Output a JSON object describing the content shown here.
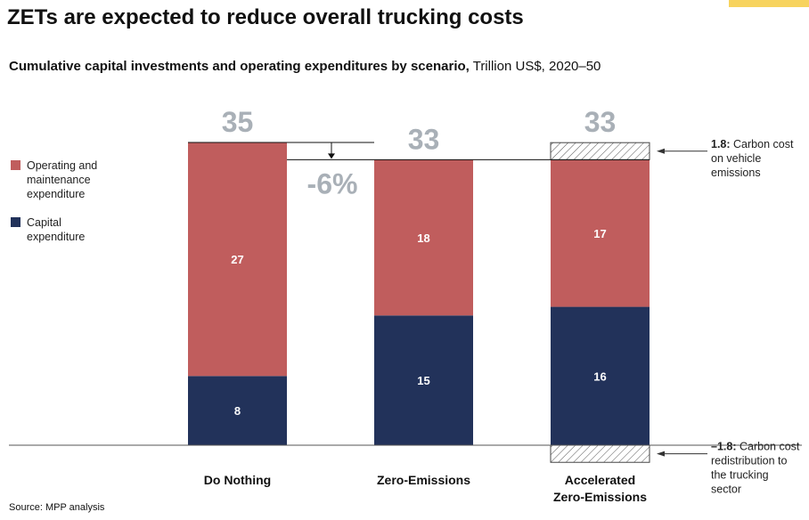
{
  "title": "ZETs are expected to reduce overall trucking costs",
  "subtitle_bold": "Cumulative capital investments and operating expenditures by scenario,",
  "subtitle_rest": " Trillion US$, 2020–50",
  "source": "Source: MPP analysis",
  "colors": {
    "opex": "#c05d5d",
    "capex": "#22325a",
    "total": "#a9b0b7",
    "accent": "#f7d35e"
  },
  "chart_data": {
    "type": "bar",
    "stacked": true,
    "categories": [
      "Do Nothing",
      "Zero-Emissions",
      "Accelerated Zero-Emissions"
    ],
    "category_lines": [
      [
        "Do Nothing"
      ],
      [
        "Zero-Emissions"
      ],
      [
        "Accelerated",
        "Zero-Emissions"
      ]
    ],
    "series": [
      {
        "name": "Capital expenditure",
        "values": [
          8,
          15,
          16
        ],
        "labels": [
          "8",
          "15",
          "16"
        ]
      },
      {
        "name": "Operating and maintenance expenditure",
        "values": [
          27,
          18,
          17
        ],
        "labels": [
          "27",
          "18",
          "17"
        ]
      }
    ],
    "totals": [
      "35",
      "33",
      "33"
    ],
    "carbon_cost": {
      "value": 1.8,
      "category": "Accelerated Zero-Emissions"
    },
    "carbon_redistribution": {
      "value": -1.8,
      "category": "Accelerated Zero-Emissions"
    },
    "ylim": [
      0,
      35
    ],
    "change_label": "-6%",
    "legend": [
      {
        "label": "Operating and maintenance expenditure",
        "lines": [
          "Operating and",
          "maintenance",
          "expenditure"
        ]
      },
      {
        "label": "Capital expenditure",
        "lines": [
          "Capital",
          "expenditure"
        ]
      }
    ],
    "annotations": [
      {
        "bold": "1.8:",
        "lines": [
          " Carbon cost",
          "on vehicle",
          "emissions"
        ]
      },
      {
        "bold": "–1.8:",
        "lines": [
          " Carbon cost",
          "redistribution to",
          "the trucking",
          "sector"
        ]
      }
    ]
  }
}
